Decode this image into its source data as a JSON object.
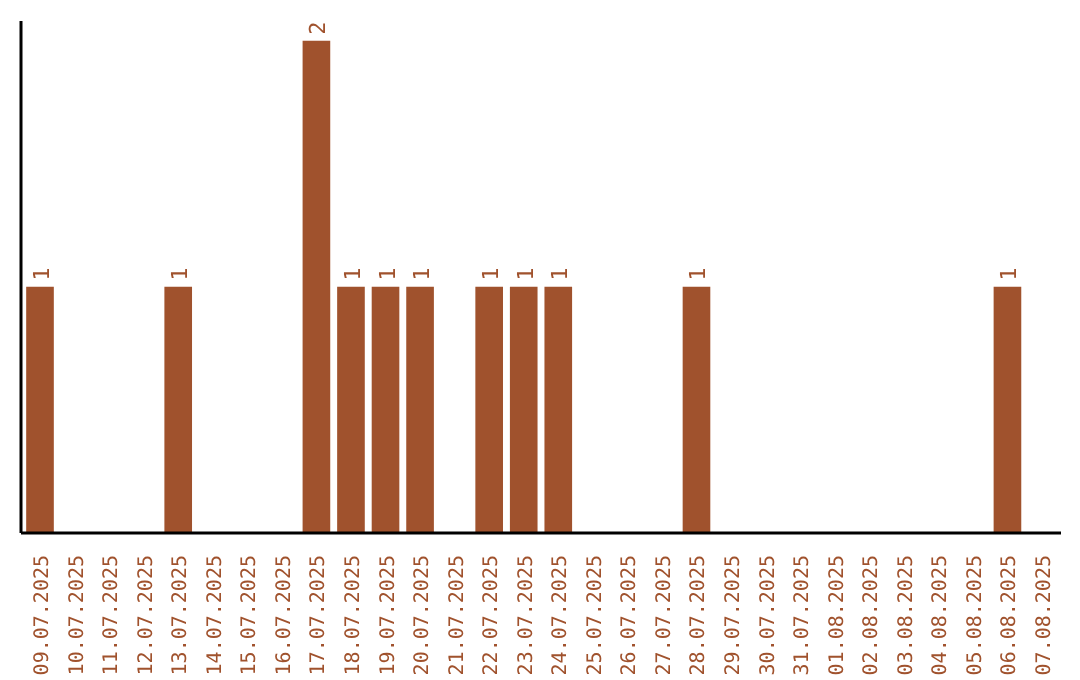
{
  "chart_data": {
    "type": "bar",
    "categories": [
      "09.07.2025",
      "10.07.2025",
      "11.07.2025",
      "12.07.2025",
      "13.07.2025",
      "14.07.2025",
      "15.07.2025",
      "16.07.2025",
      "17.07.2025",
      "18.07.2025",
      "19.07.2025",
      "20.07.2025",
      "21.07.2025",
      "22.07.2025",
      "23.07.2025",
      "24.07.2025",
      "25.07.2025",
      "26.07.2025",
      "27.07.2025",
      "28.07.2025",
      "29.07.2025",
      "30.07.2025",
      "31.07.2025",
      "01.08.2025",
      "02.08.2025",
      "03.08.2025",
      "04.08.2025",
      "05.08.2025",
      "06.08.2025",
      "07.08.2025"
    ],
    "values": [
      1,
      0,
      0,
      0,
      1,
      0,
      0,
      0,
      2,
      1,
      1,
      1,
      0,
      1,
      1,
      1,
      0,
      0,
      0,
      1,
      0,
      0,
      0,
      0,
      0,
      0,
      0,
      0,
      1,
      0
    ],
    "value_labels": [
      "1",
      null,
      null,
      null,
      "1",
      null,
      null,
      null,
      "2",
      "1",
      "1",
      "1",
      null,
      "1",
      "1",
      "1",
      null,
      null,
      null,
      "1",
      null,
      null,
      null,
      null,
      null,
      null,
      null,
      null,
      "1",
      null
    ],
    "color": "#a0522d",
    "ylim": [
      0,
      2.08
    ]
  }
}
